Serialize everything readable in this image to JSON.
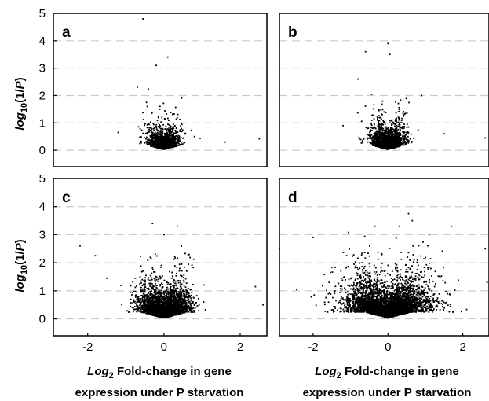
{
  "chart_data": [
    {
      "type": "scatter",
      "panel": "a",
      "xlim": [
        -2.9,
        2.7
      ],
      "ylim": [
        -0.6,
        5.0
      ],
      "x_ticks": [
        -2,
        0,
        2
      ],
      "y_ticks": [
        0,
        1,
        2,
        3,
        4,
        5
      ],
      "grid": "horizontal dashed",
      "n_points_approx": 1400,
      "x_spread": 0.2,
      "y_decay": 0.3,
      "outliers": [
        [
          -0.55,
          4.8
        ],
        [
          0.1,
          3.4
        ],
        [
          -0.2,
          3.1
        ],
        [
          -1.2,
          0.65
        ],
        [
          1.6,
          0.3
        ],
        [
          2.5,
          0.42
        ],
        [
          0.8,
          0.5
        ],
        [
          -0.7,
          2.3
        ]
      ]
    },
    {
      "type": "scatter",
      "panel": "b",
      "xlim": [
        -2.9,
        2.7
      ],
      "ylim": [
        -0.6,
        5.0
      ],
      "x_ticks": [
        -2,
        0,
        2
      ],
      "y_ticks": [
        0,
        1,
        2,
        3,
        4,
        5
      ],
      "grid": "horizontal dashed",
      "n_points_approx": 1800,
      "x_spread": 0.22,
      "y_decay": 0.35,
      "outliers": [
        [
          0,
          3.9
        ],
        [
          -0.6,
          3.6
        ],
        [
          0.05,
          3.5
        ],
        [
          -0.8,
          2.6
        ],
        [
          -1.2,
          0.9
        ],
        [
          1.5,
          0.6
        ],
        [
          2.6,
          0.45
        ],
        [
          0.9,
          2.0
        ]
      ]
    },
    {
      "type": "scatter",
      "panel": "c",
      "xlim": [
        -2.9,
        2.7
      ],
      "ylim": [
        -0.6,
        5.0
      ],
      "x_ticks": [
        -2,
        0,
        2
      ],
      "y_ticks": [
        0,
        1,
        2,
        3,
        4,
        5
      ],
      "grid": "horizontal dashed",
      "n_points_approx": 3200,
      "x_spread": 0.32,
      "y_decay": 0.42,
      "outliers": [
        [
          -2.2,
          2.6
        ],
        [
          -1.8,
          2.25
        ],
        [
          -0.3,
          3.4
        ],
        [
          0.35,
          3.3
        ],
        [
          0,
          3.0
        ],
        [
          2.4,
          1.15
        ],
        [
          2.6,
          0.5
        ],
        [
          -1.5,
          1.45
        ]
      ]
    },
    {
      "type": "scatter",
      "panel": "d",
      "xlim": [
        -2.9,
        2.7
      ],
      "ylim": [
        -0.6,
        5.0
      ],
      "x_ticks": [
        -2,
        0,
        2
      ],
      "y_ticks": [
        0,
        1,
        2,
        3,
        4,
        5
      ],
      "grid": "horizontal dashed",
      "n_points_approx": 4200,
      "x_spread": 0.55,
      "y_decay": 0.5,
      "outliers": [
        [
          0.55,
          3.75
        ],
        [
          0.65,
          3.5
        ],
        [
          0.3,
          3.3
        ],
        [
          -0.35,
          3.3
        ],
        [
          1.7,
          3.3
        ],
        [
          -2.9,
          2.5
        ],
        [
          2.6,
          2.5
        ],
        [
          2.65,
          1.3
        ],
        [
          -2.0,
          2.9
        ],
        [
          1.1,
          3.0
        ]
      ]
    }
  ],
  "panel_labels": [
    "a",
    "b",
    "c",
    "d"
  ],
  "ylabel": {
    "main": "log",
    "sub": "10",
    "rest_pre": "(1/",
    "italic": "P",
    "rest_post": ")"
  },
  "xlabel": {
    "italic": "Log",
    "sub": "2",
    "line1_rest": " Fold-change in gene",
    "line2": "expression under P starvation"
  },
  "colors": {
    "points": "#000000",
    "grid": "#cccccc",
    "frame": "#000000"
  }
}
